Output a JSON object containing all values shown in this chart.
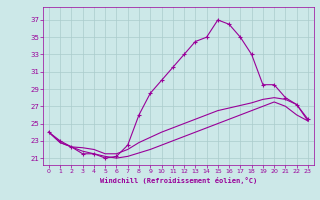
{
  "xlabel": "Windchill (Refroidissement éolien,°C)",
  "bg_color": "#cce8e8",
  "grid_color": "#aacccc",
  "line_color": "#990099",
  "x_ticks": [
    0,
    1,
    2,
    3,
    4,
    5,
    6,
    7,
    8,
    9,
    10,
    11,
    12,
    13,
    14,
    15,
    16,
    17,
    18,
    19,
    20,
    21,
    22,
    23
  ],
  "y_ticks": [
    21,
    23,
    25,
    27,
    29,
    31,
    33,
    35,
    37
  ],
  "ylim": [
    20.2,
    38.5
  ],
  "xlim": [
    -0.5,
    23.5
  ],
  "s1_x": [
    0,
    1,
    2,
    3,
    4,
    5,
    6,
    7,
    8,
    9,
    10,
    11,
    12,
    13,
    14,
    15,
    16,
    17,
    18,
    19,
    20,
    21,
    22,
    23
  ],
  "s1_y": [
    24.0,
    23.0,
    22.3,
    21.5,
    21.5,
    21.0,
    21.2,
    22.5,
    26.0,
    28.5,
    30.0,
    31.5,
    33.0,
    34.5,
    35.0,
    37.0,
    36.5,
    35.0,
    33.0,
    29.5,
    29.5,
    28.0,
    27.2,
    25.5
  ],
  "s2_x": [
    0,
    1,
    2,
    3,
    4,
    5,
    6,
    7,
    8,
    9,
    10,
    11,
    12,
    13,
    14,
    15,
    16,
    17,
    18,
    19,
    20,
    21,
    22,
    23
  ],
  "s2_y": [
    24.0,
    22.8,
    22.3,
    22.2,
    22.0,
    21.5,
    21.5,
    22.0,
    22.8,
    23.4,
    24.0,
    24.5,
    25.0,
    25.5,
    26.0,
    26.5,
    26.8,
    27.1,
    27.4,
    27.8,
    28.0,
    27.8,
    27.2,
    25.3
  ],
  "s3_x": [
    0,
    1,
    2,
    3,
    4,
    5,
    6,
    7,
    8,
    9,
    10,
    11,
    12,
    13,
    14,
    15,
    16,
    17,
    18,
    19,
    20,
    21,
    22,
    23
  ],
  "s3_y": [
    24.0,
    22.8,
    22.3,
    21.8,
    21.5,
    21.2,
    21.0,
    21.2,
    21.6,
    22.0,
    22.5,
    23.0,
    23.5,
    24.0,
    24.5,
    25.0,
    25.5,
    26.0,
    26.5,
    27.0,
    27.5,
    27.0,
    26.0,
    25.3
  ]
}
